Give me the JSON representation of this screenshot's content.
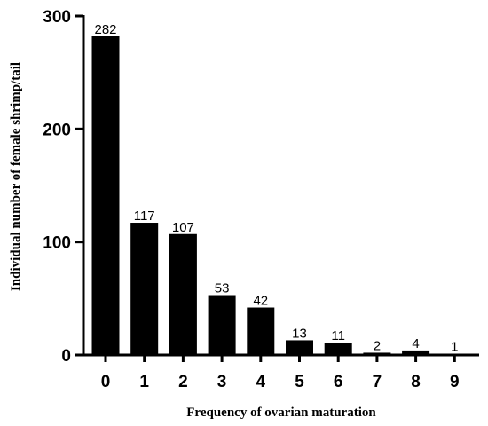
{
  "chart_data": {
    "type": "bar",
    "title": "",
    "xlabel": "Frequency of ovarian maturation",
    "ylabel": "Individual number of female shrimp/tail",
    "categories": [
      "0",
      "1",
      "2",
      "3",
      "4",
      "5",
      "6",
      "7",
      "8",
      "9"
    ],
    "values": [
      282,
      117,
      107,
      53,
      42,
      13,
      11,
      2,
      4,
      1
    ],
    "data_labels": [
      "282",
      "117",
      "107",
      "53",
      "42",
      "13",
      "11",
      "2",
      "4",
      "1"
    ],
    "ylim": [
      0,
      300
    ],
    "yticks": [
      0,
      100,
      200,
      300
    ],
    "ytick_labels": [
      "0",
      "100",
      "200",
      "300"
    ],
    "grid": false,
    "legend": "none",
    "bar_color": "#000000"
  }
}
